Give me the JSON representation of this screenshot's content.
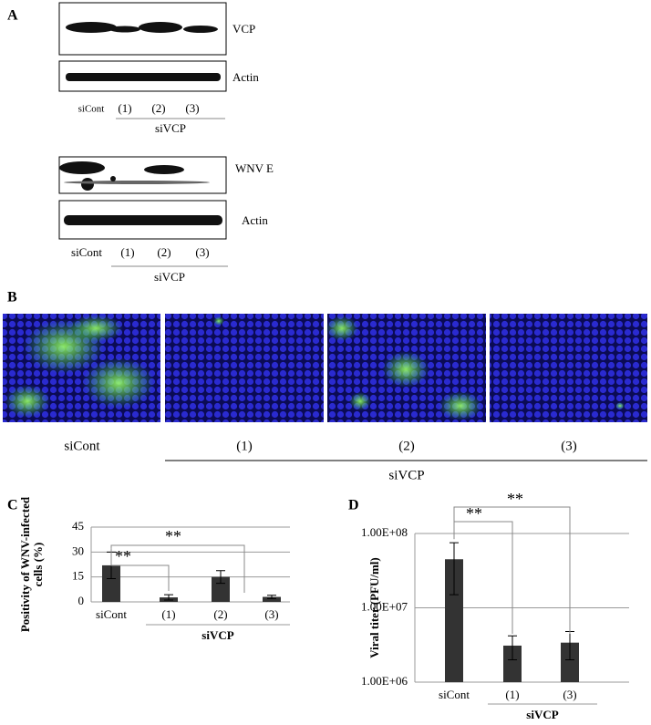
{
  "panel_a": {
    "label": "A",
    "blot1": {
      "bands": [
        "VCP",
        "Actin"
      ],
      "lanes": [
        "siCont",
        "(1)",
        "(2)",
        "(3)"
      ],
      "group": "siVCP"
    },
    "blot2": {
      "bands": [
        "WNV E",
        "Actin"
      ],
      "lanes": [
        "siCont",
        "(1)",
        "(2)",
        "(3)"
      ],
      "group": "siVCP"
    }
  },
  "panel_b": {
    "label": "B",
    "lanes": [
      "siCont",
      "(1)",
      "(2)",
      "(3)"
    ],
    "group": "siVCP"
  },
  "chart_data": [
    {
      "type": "bar",
      "panel": "C",
      "y_label": [
        "Positivity of WNV-infected",
        "cells (%)"
      ],
      "categories": [
        "siCont",
        "(1)",
        "(2)",
        "(3)"
      ],
      "values": [
        22,
        2.7,
        15,
        3
      ],
      "errors": [
        8,
        1.6,
        3.8,
        1
      ],
      "color": "#333333",
      "ylim": [
        0,
        45
      ],
      "yticks": [
        0,
        15,
        30,
        45
      ],
      "grid": true,
      "group_label": "siVCP",
      "annotations": [
        "**",
        "**"
      ]
    },
    {
      "type": "bar",
      "panel": "D",
      "y_label": [
        "Viral titer (PFU/ml)"
      ],
      "categories": [
        "siCont",
        "(1)",
        "(3)"
      ],
      "values": [
        45000000,
        3100000,
        3400000
      ],
      "errors": [
        30000000,
        1100000,
        1400000
      ],
      "color": "#333333",
      "log_scale": true,
      "ylim": [
        1000000,
        100000000
      ],
      "yticks": [
        {
          "value": 1000000,
          "label": "1.00E+06"
        },
        {
          "value": 10000000,
          "label": "1.00E+07"
        },
        {
          "value": 100000000,
          "label": "1.00E+08"
        }
      ],
      "grid": true,
      "group_label": "siVCP",
      "annotations": [
        "**",
        "**"
      ]
    }
  ]
}
